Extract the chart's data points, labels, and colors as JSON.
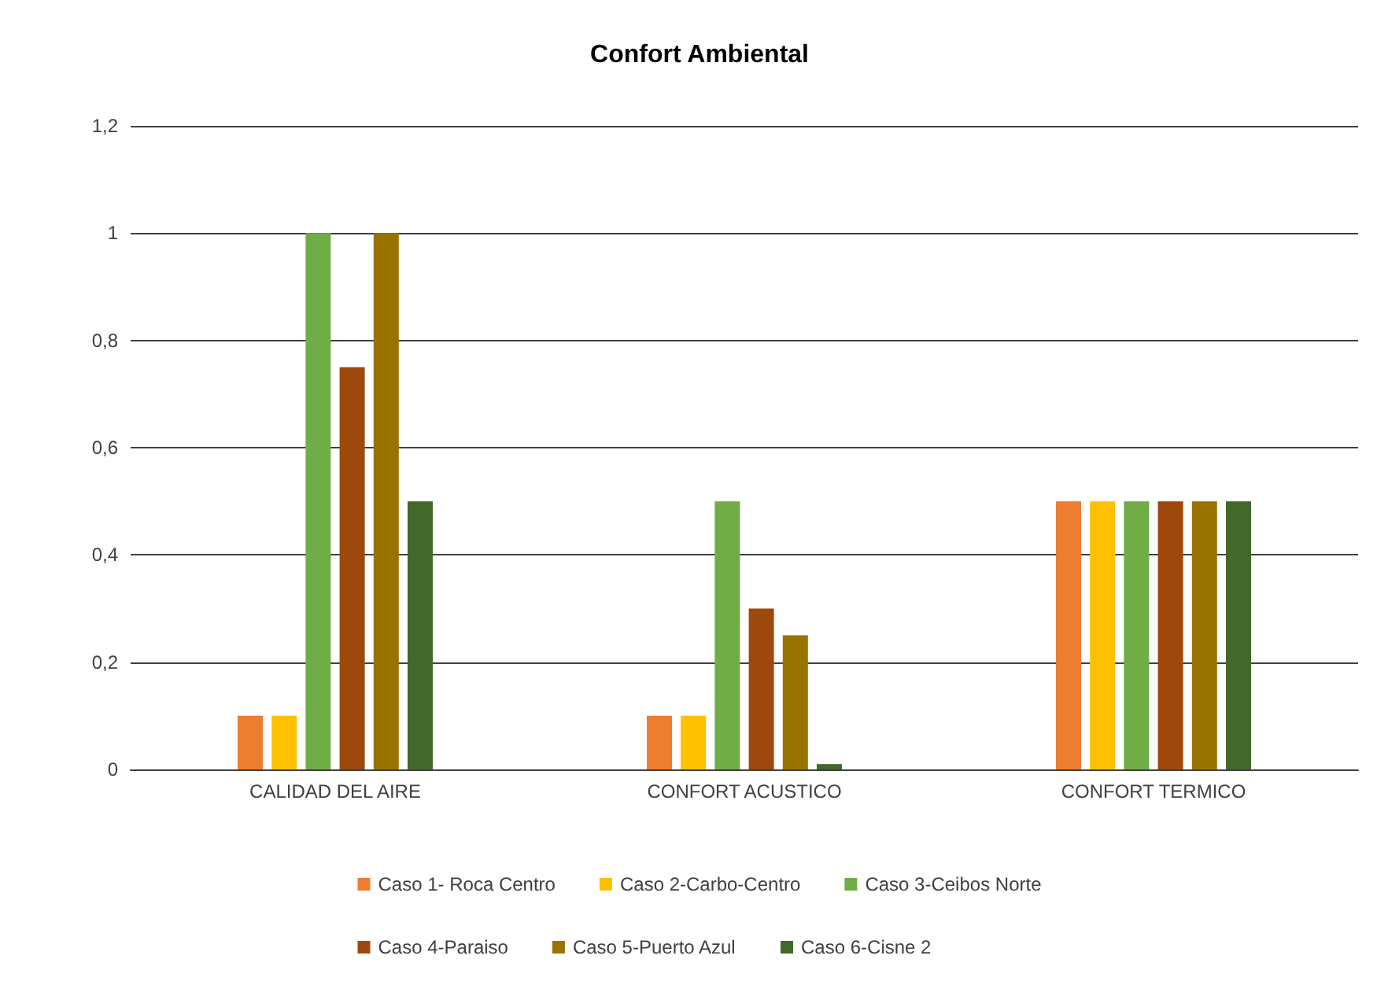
{
  "chart_data": {
    "type": "bar",
    "title": "Confort Ambiental",
    "categories": [
      "CALIDAD DEL AIRE",
      "CONFORT ACUSTICO",
      "CONFORT TERMICO"
    ],
    "series": [
      {
        "name": "Caso 1- Roca Centro",
        "color": "#ed7d31",
        "values": [
          0.1,
          0.1,
          0.5
        ]
      },
      {
        "name": "Caso 2-Carbo-Centro",
        "color": "#ffc000",
        "values": [
          0.1,
          0.1,
          0.5
        ]
      },
      {
        "name": "Caso 3-Ceibos Norte",
        "color": "#70ad47",
        "values": [
          1,
          0.5,
          0.5
        ]
      },
      {
        "name": "Caso 4-Paraiso",
        "color": "#9e480e",
        "values": [
          0.75,
          0.3,
          0.5
        ]
      },
      {
        "name": "Caso 5-Puerto Azul",
        "color": "#997300",
        "values": [
          1,
          0.25,
          0.5
        ]
      },
      {
        "name": "Caso 6-Cisne 2",
        "color": "#43682b",
        "values": [
          0.5,
          0.01,
          0.5
        ]
      }
    ],
    "ylim": [
      0,
      1.2
    ],
    "yticks": [
      0,
      {
        "value": 0.2,
        "label": "0,2"
      },
      {
        "value": 0.4,
        "label": "0,4"
      },
      {
        "value": 0.6,
        "label": "0,6"
      },
      {
        "value": 0.8,
        "label": "0,8"
      },
      1,
      {
        "value": 1.2,
        "label": "1,2"
      }
    ],
    "grid": "y",
    "legend": "bottom"
  }
}
